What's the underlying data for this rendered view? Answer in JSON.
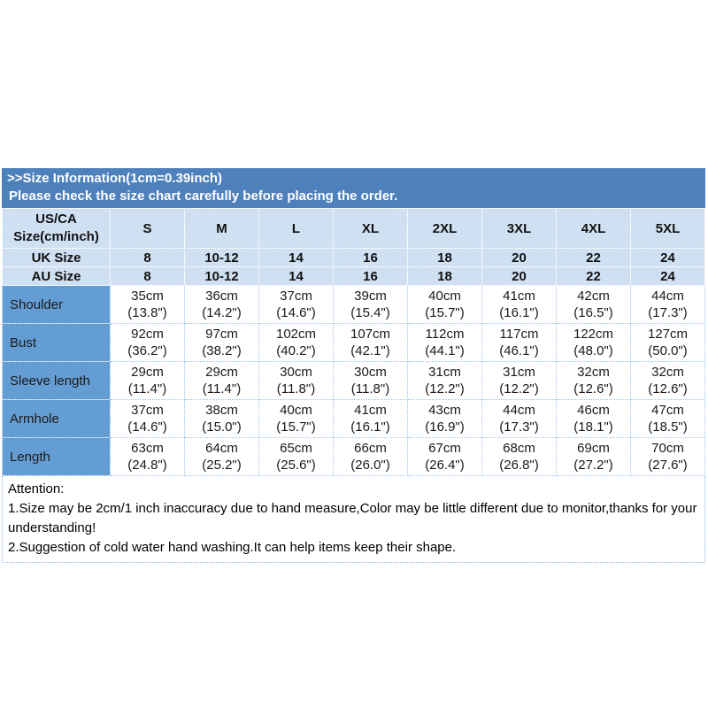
{
  "header": {
    "title": ">>Size Information(1cm=0.39inch)",
    "subtitle": "Please check the size chart carefully before placing the order."
  },
  "table": {
    "corner": {
      "line1": "US/CA",
      "line2": "Size(cm/inch)"
    },
    "size_columns": [
      "S",
      "M",
      "L",
      "XL",
      "2XL",
      "3XL",
      "4XL",
      "5XL"
    ],
    "uk_row": {
      "label": "UK Size",
      "values": [
        "8",
        "10-12",
        "14",
        "16",
        "18",
        "20",
        "22",
        "24"
      ]
    },
    "au_row": {
      "label": "AU Size",
      "values": [
        "8",
        "10-12",
        "14",
        "16",
        "18",
        "20",
        "22",
        "24"
      ]
    },
    "rows": [
      {
        "label": "Shoulder",
        "cm": [
          "35cm",
          "36cm",
          "37cm",
          "39cm",
          "40cm",
          "41cm",
          "42cm",
          "44cm"
        ],
        "inch": [
          "(13.8\")",
          "(14.2\")",
          "(14.6\")",
          "(15.4\")",
          "(15.7\")",
          "(16.1\")",
          "(16.5\")",
          "(17.3\")"
        ]
      },
      {
        "label": "Bust",
        "cm": [
          "92cm",
          "97cm",
          "102cm",
          "107cm",
          "112cm",
          "117cm",
          "122cm",
          "127cm"
        ],
        "inch": [
          "(36.2\")",
          "(38.2\")",
          "(40.2\")",
          "(42.1\")",
          "(44.1\")",
          "(46.1\")",
          "(48.0\")",
          "(50.0\")"
        ]
      },
      {
        "label": "Sleeve length",
        "cm": [
          "29cm",
          "29cm",
          "30cm",
          "30cm",
          "31cm",
          "31cm",
          "32cm",
          "32cm"
        ],
        "inch": [
          "(11.4\")",
          "(11.4\")",
          "(11.8\")",
          "(11.8\")",
          "(12.2\")",
          "(12.2\")",
          "(12.6\")",
          "(12.6\")"
        ]
      },
      {
        "label": "Armhole",
        "cm": [
          "37cm",
          "38cm",
          "40cm",
          "41cm",
          "43cm",
          "44cm",
          "46cm",
          "47cm"
        ],
        "inch": [
          "(14.6\")",
          "(15.0\")",
          "(15.7\")",
          "(16.1\")",
          "(16.9\")",
          "(17.3\")",
          "(18.1\")",
          "(18.5\")"
        ]
      },
      {
        "label": "Length",
        "cm": [
          "63cm",
          "64cm",
          "65cm",
          "66cm",
          "67cm",
          "68cm",
          "69cm",
          "70cm"
        ],
        "inch": [
          "(24.8\")",
          "(25.2\")",
          "(25.6\")",
          "(26.0\")",
          "(26.4\")",
          "(26.8\")",
          "(27.2\")",
          "(27.6\")"
        ]
      }
    ]
  },
  "attention": {
    "heading": "Attention:",
    "line1": "1.Size may be 2cm/1 inch inaccuracy due to hand measure,Color may be little different due to monitor,thanks for your understanding!",
    "line2": "2.Suggestion of cold water hand washing.It can help items keep their shape."
  },
  "colors": {
    "title_bar": "#4e81bc",
    "header_row_bg": "#cfe0f2",
    "label_column_bg": "#649dd4",
    "separator_line": "#4e81bc",
    "dotted_border": "#9fc5e8",
    "title_text": "#ffffff",
    "body_text": "#1a1a1a"
  }
}
